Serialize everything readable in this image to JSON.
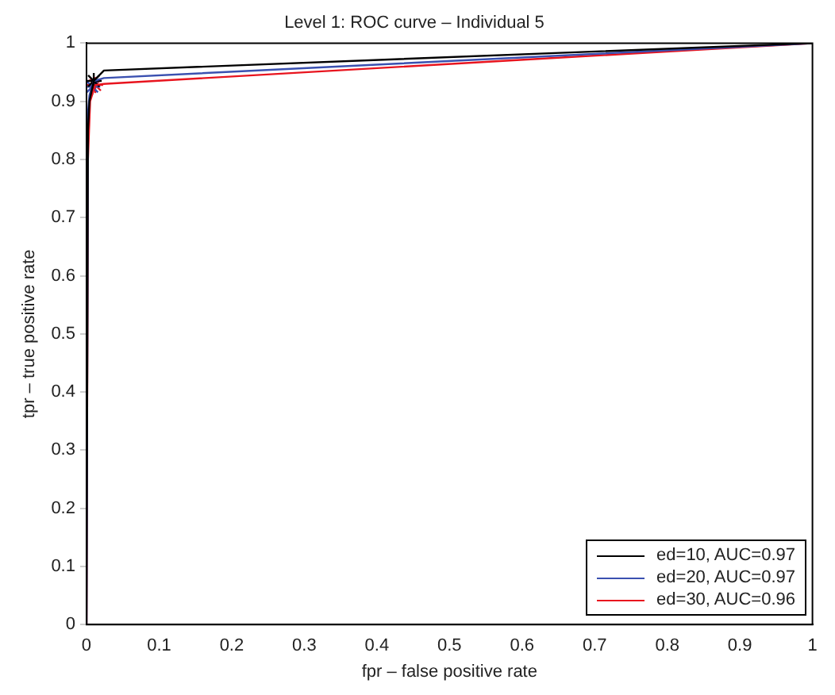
{
  "chart_data": {
    "type": "line",
    "title": "Level 1: ROC curve – Individual 5",
    "xlabel": "fpr – false positive rate",
    "ylabel": "tpr – true positive rate",
    "xlim": [
      0,
      1
    ],
    "ylim": [
      0,
      1
    ],
    "xticks": [
      0,
      0.1,
      0.2,
      0.3,
      0.4,
      0.5,
      0.6,
      0.7,
      0.8,
      0.9,
      1
    ],
    "yticks": [
      0,
      0.1,
      0.2,
      0.3,
      0.4,
      0.5,
      0.6,
      0.7,
      0.8,
      0.9,
      1
    ],
    "grid": false,
    "legend": "bottom right",
    "marker": "none",
    "line_style": "solid",
    "series": [
      {
        "name": "ed=10, AUC=0.97",
        "color": "#000000",
        "x": [
          0,
          0.002,
          0.004,
          0.01,
          0.024,
          1
        ],
        "values": [
          0,
          0.85,
          0.9,
          0.935,
          0.953,
          1
        ]
      },
      {
        "name": "ed=20, AUC=0.97",
        "color": "#3a50b0",
        "x": [
          0,
          0.002,
          0.004,
          0.01,
          0.024,
          1
        ],
        "values": [
          0,
          0.88,
          0.91,
          0.935,
          0.94,
          1
        ]
      },
      {
        "name": "ed=30, AUC=0.96",
        "color": "#e8141e",
        "x": [
          0,
          0.002,
          0.005,
          0.012,
          0.024,
          1
        ],
        "values": [
          0,
          0.8,
          0.9,
          0.928,
          0.93,
          1
        ]
      },
      {
        "type": "scatter",
        "marker": "cross",
        "color": "#000000",
        "x": [
          0.01
        ],
        "values": [
          0.935
        ]
      },
      {
        "type": "scatter",
        "marker": "cross",
        "color": "#3a50b0",
        "x": [
          0.008
        ],
        "values": [
          0.925
        ]
      },
      {
        "type": "scatter",
        "marker": "cross",
        "color": "#e8141e",
        "x": [
          0.012
        ],
        "values": [
          0.928
        ]
      }
    ]
  }
}
